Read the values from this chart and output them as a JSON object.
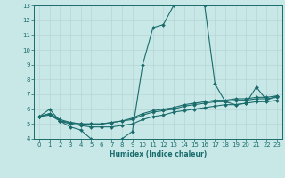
{
  "title": "",
  "xlabel": "Humidex (Indice chaleur)",
  "ylabel": "",
  "bg_color": "#c8e8e8",
  "grid_color": "#b8d4d4",
  "line_color": "#1a6b6b",
  "xlim": [
    -0.5,
    23.5
  ],
  "ylim": [
    4,
    13
  ],
  "xticks": [
    0,
    1,
    2,
    3,
    4,
    5,
    6,
    7,
    8,
    9,
    10,
    11,
    12,
    13,
    14,
    15,
    16,
    17,
    18,
    19,
    20,
    21,
    22,
    23
  ],
  "yticks": [
    4,
    5,
    6,
    7,
    8,
    9,
    10,
    11,
    12,
    13
  ],
  "series": [
    {
      "x": [
        0,
        1,
        2,
        3,
        4,
        5,
        6,
        7,
        8,
        9,
        10,
        11,
        12,
        13,
        14,
        15,
        16,
        17,
        18,
        19,
        20,
        21,
        22,
        23
      ],
      "y": [
        5.5,
        6.0,
        5.2,
        4.8,
        4.6,
        4.0,
        3.7,
        3.7,
        4.0,
        4.5,
        9.0,
        11.5,
        11.7,
        13.0,
        13.3,
        13.4,
        13.0,
        7.7,
        6.5,
        6.3,
        6.4,
        7.5,
        6.6,
        6.9
      ]
    },
    {
      "x": [
        0,
        1,
        2,
        3,
        4,
        5,
        6,
        7,
        8,
        9,
        10,
        11,
        12,
        13,
        14,
        15,
        16,
        17,
        18,
        19,
        20,
        21,
        22,
        23
      ],
      "y": [
        5.5,
        5.7,
        5.2,
        5.1,
        5.0,
        5.0,
        5.0,
        5.1,
        5.2,
        5.3,
        5.6,
        5.8,
        5.9,
        6.0,
        6.2,
        6.3,
        6.4,
        6.5,
        6.5,
        6.6,
        6.6,
        6.7,
        6.7,
        6.8
      ]
    },
    {
      "x": [
        0,
        1,
        2,
        3,
        4,
        5,
        6,
        7,
        8,
        9,
        10,
        11,
        12,
        13,
        14,
        15,
        16,
        17,
        18,
        19,
        20,
        21,
        22,
        23
      ],
      "y": [
        5.5,
        5.6,
        5.2,
        5.0,
        4.9,
        4.8,
        4.8,
        4.8,
        4.9,
        5.0,
        5.3,
        5.5,
        5.6,
        5.8,
        5.9,
        6.0,
        6.1,
        6.2,
        6.3,
        6.3,
        6.4,
        6.5,
        6.5,
        6.6
      ]
    },
    {
      "x": [
        0,
        1,
        2,
        3,
        4,
        5,
        6,
        7,
        8,
        9,
        10,
        11,
        12,
        13,
        14,
        15,
        16,
        17,
        18,
        19,
        20,
        21,
        22,
        23
      ],
      "y": [
        5.5,
        5.7,
        5.3,
        5.1,
        5.0,
        5.0,
        5.0,
        5.1,
        5.2,
        5.4,
        5.7,
        5.9,
        6.0,
        6.1,
        6.3,
        6.4,
        6.5,
        6.6,
        6.6,
        6.7,
        6.7,
        6.8,
        6.8,
        6.9
      ]
    }
  ]
}
